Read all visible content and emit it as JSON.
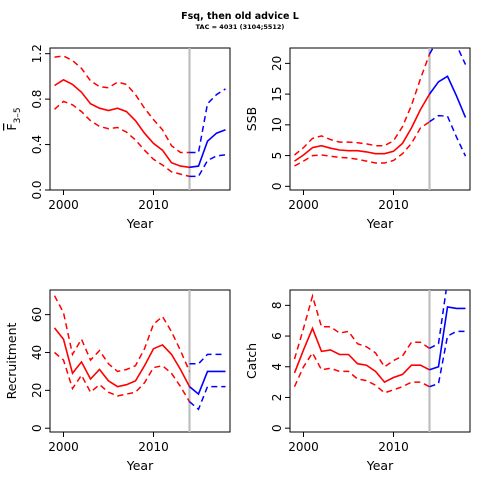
{
  "figure": {
    "title": "Fsq, then old advice L",
    "subtitle": "TAC = 4031 (3104;5512)"
  },
  "colors": {
    "historic": "#ff0000",
    "projection": "#0000ff",
    "divider": "#bebebe",
    "axis": "#000000"
  },
  "chart_data": [
    {
      "type": "line",
      "panel": "F",
      "xlabel": "Year",
      "ylabel": "F̅ 3–5",
      "ylabel_main": "F",
      "ylabel_sub": "3–5",
      "xlim": [
        1998.5,
        2018.5
      ],
      "ylim": [
        0,
        1.25
      ],
      "xticks": [
        2000,
        2010
      ],
      "yticks": [
        0.0,
        0.4,
        0.8,
        1.2
      ],
      "ytick_labels": [
        "0.0",
        "0.4",
        "0.8",
        "1.2"
      ],
      "divider_x": 2014,
      "historic": {
        "x": [
          1999,
          2000,
          2001,
          2002,
          2003,
          2004,
          2005,
          2006,
          2007,
          2008,
          2009,
          2010,
          2011,
          2012,
          2013,
          2014
        ],
        "mid": [
          0.92,
          0.97,
          0.93,
          0.86,
          0.76,
          0.72,
          0.7,
          0.72,
          0.69,
          0.61,
          0.5,
          0.41,
          0.35,
          0.24,
          0.21,
          0.2
        ],
        "upper": [
          1.17,
          1.18,
          1.14,
          1.07,
          0.96,
          0.91,
          0.9,
          0.95,
          0.93,
          0.84,
          0.72,
          0.62,
          0.53,
          0.39,
          0.33,
          0.33
        ],
        "lower": [
          0.71,
          0.78,
          0.75,
          0.69,
          0.61,
          0.56,
          0.54,
          0.55,
          0.51,
          0.44,
          0.35,
          0.27,
          0.22,
          0.16,
          0.14,
          0.12
        ]
      },
      "projection": {
        "x": [
          2014,
          2015,
          2016,
          2017,
          2018
        ],
        "mid": [
          0.2,
          0.21,
          0.43,
          0.5,
          0.53
        ],
        "upper": [
          0.33,
          0.33,
          0.76,
          0.84,
          0.89
        ],
        "lower": [
          0.12,
          0.12,
          0.26,
          0.3,
          0.31
        ]
      }
    },
    {
      "type": "line",
      "panel": "SSB",
      "xlabel": "Year",
      "ylabel": "SSB",
      "xlim": [
        1998.5,
        2018.5
      ],
      "ylim": [
        -0.6,
        22.5
      ],
      "xticks": [
        2000,
        2010
      ],
      "yticks": [
        0,
        5,
        10,
        15,
        20
      ],
      "ytick_labels": [
        "0",
        "5",
        "10",
        "15",
        "20"
      ],
      "divider_x": 2014,
      "historic": {
        "x": [
          1999,
          2000,
          2001,
          2002,
          2003,
          2004,
          2005,
          2006,
          2007,
          2008,
          2009,
          2010,
          2011,
          2012,
          2013,
          2014
        ],
        "mid": [
          4.1,
          5.1,
          6.3,
          6.6,
          6.2,
          5.9,
          5.8,
          5.8,
          5.6,
          5.3,
          5.3,
          5.7,
          7.0,
          9.5,
          12.5,
          15.0
        ],
        "upper": [
          5.1,
          6.3,
          7.8,
          8.2,
          7.6,
          7.2,
          7.2,
          7.1,
          6.9,
          6.6,
          6.6,
          7.4,
          9.7,
          13.2,
          17.5,
          21.5
        ],
        "lower": [
          3.3,
          4.1,
          5.0,
          5.1,
          4.9,
          4.7,
          4.6,
          4.4,
          4.1,
          3.8,
          3.8,
          4.2,
          5.3,
          7.0,
          9.5,
          10.5
        ]
      },
      "projection": {
        "x": [
          2014,
          2015,
          2016,
          2017,
          2018
        ],
        "mid": [
          15.0,
          17.0,
          17.9,
          14.7,
          11.2
        ],
        "upper": [
          21.5,
          24.0,
          25.0,
          23.0,
          19.8
        ],
        "lower": [
          10.5,
          11.5,
          11.4,
          8.0,
          4.9
        ]
      }
    },
    {
      "type": "line",
      "panel": "Recruitment",
      "xlabel": "Year",
      "ylabel": "Recruitment",
      "xlim": [
        1998.5,
        2018.5
      ],
      "ylim": [
        -2,
        73
      ],
      "xticks": [
        2000,
        2010
      ],
      "yticks": [
        0,
        20,
        40,
        60
      ],
      "ytick_labels": [
        "0",
        "20",
        "40",
        "60"
      ],
      "divider_x": 2014,
      "historic": {
        "x": [
          1999,
          2000,
          2001,
          2002,
          2003,
          2004,
          2005,
          2006,
          2007,
          2008,
          2009,
          2010,
          2011,
          2012,
          2013,
          2014
        ],
        "mid": [
          53,
          47,
          29,
          35,
          26,
          31,
          25,
          22,
          23,
          25,
          33,
          42,
          44,
          39,
          31,
          22
        ],
        "upper": [
          70,
          61,
          39,
          47,
          36,
          41,
          34,
          30,
          31,
          33,
          42,
          55,
          59,
          51,
          41,
          30
        ],
        "lower": [
          40,
          36,
          21,
          28,
          19,
          23,
          19,
          17,
          18,
          19,
          24,
          32,
          33,
          29,
          22,
          14
        ]
      },
      "projection": {
        "x": [
          2014,
          2015,
          2016,
          2017,
          2018
        ],
        "mid": [
          22,
          18,
          30,
          30,
          30
        ],
        "upper": [
          34,
          34,
          39,
          39,
          39
        ],
        "lower": [
          14,
          10,
          22,
          22,
          22
        ]
      }
    },
    {
      "type": "line",
      "panel": "Catch",
      "xlabel": "Year",
      "ylabel": "Catch",
      "xlim": [
        1998.5,
        2018.5
      ],
      "ylim": [
        -0.25,
        9.0
      ],
      "xticks": [
        2000,
        2010
      ],
      "yticks": [
        0,
        2,
        4,
        6,
        8
      ],
      "ytick_labels": [
        "0",
        "2",
        "4",
        "6",
        "8"
      ],
      "divider_x": 2014,
      "historic": {
        "x": [
          1999,
          2000,
          2001,
          2002,
          2003,
          2004,
          2005,
          2006,
          2007,
          2008,
          2009,
          2010,
          2011,
          2012,
          2013,
          2014
        ],
        "mid": [
          3.6,
          5.1,
          6.5,
          5.0,
          5.1,
          4.8,
          4.8,
          4.2,
          4.1,
          3.7,
          3.0,
          3.3,
          3.5,
          4.1,
          4.1,
          3.8
        ],
        "upper": [
          4.5,
          6.5,
          8.6,
          6.6,
          6.6,
          6.2,
          6.3,
          5.5,
          5.3,
          4.9,
          4.0,
          4.4,
          4.7,
          5.6,
          5.6,
          5.2
        ],
        "lower": [
          2.7,
          4.0,
          4.9,
          3.8,
          3.9,
          3.7,
          3.7,
          3.2,
          3.1,
          2.8,
          2.3,
          2.5,
          2.7,
          3.0,
          3.0,
          2.7
        ]
      },
      "projection": {
        "x": [
          2014,
          2015,
          2016,
          2017,
          2018
        ],
        "mid": [
          3.8,
          4.0,
          7.9,
          7.8,
          7.8
        ],
        "upper": [
          5.2,
          5.5,
          9.6,
          9.6,
          9.6
        ],
        "lower": [
          2.7,
          2.9,
          6.0,
          6.3,
          6.3
        ]
      }
    }
  ]
}
